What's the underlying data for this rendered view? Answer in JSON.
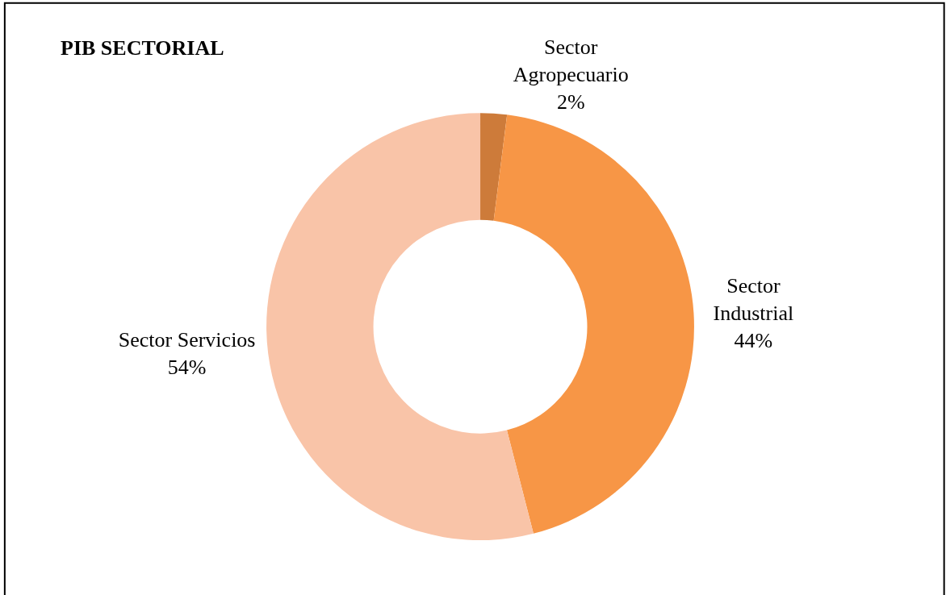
{
  "chart_data": {
    "type": "donut",
    "title": "PIB SECTORIAL",
    "categories": [
      "Sector Agropecuario",
      "Sector Industrial",
      "Sector Servicios"
    ],
    "values": [
      2,
      44,
      54
    ],
    "value_labels": [
      "2%",
      "44%",
      "54%"
    ],
    "colors": [
      "#cd7b3a",
      "#f79646",
      "#f9c4a8"
    ],
    "legend": false
  }
}
